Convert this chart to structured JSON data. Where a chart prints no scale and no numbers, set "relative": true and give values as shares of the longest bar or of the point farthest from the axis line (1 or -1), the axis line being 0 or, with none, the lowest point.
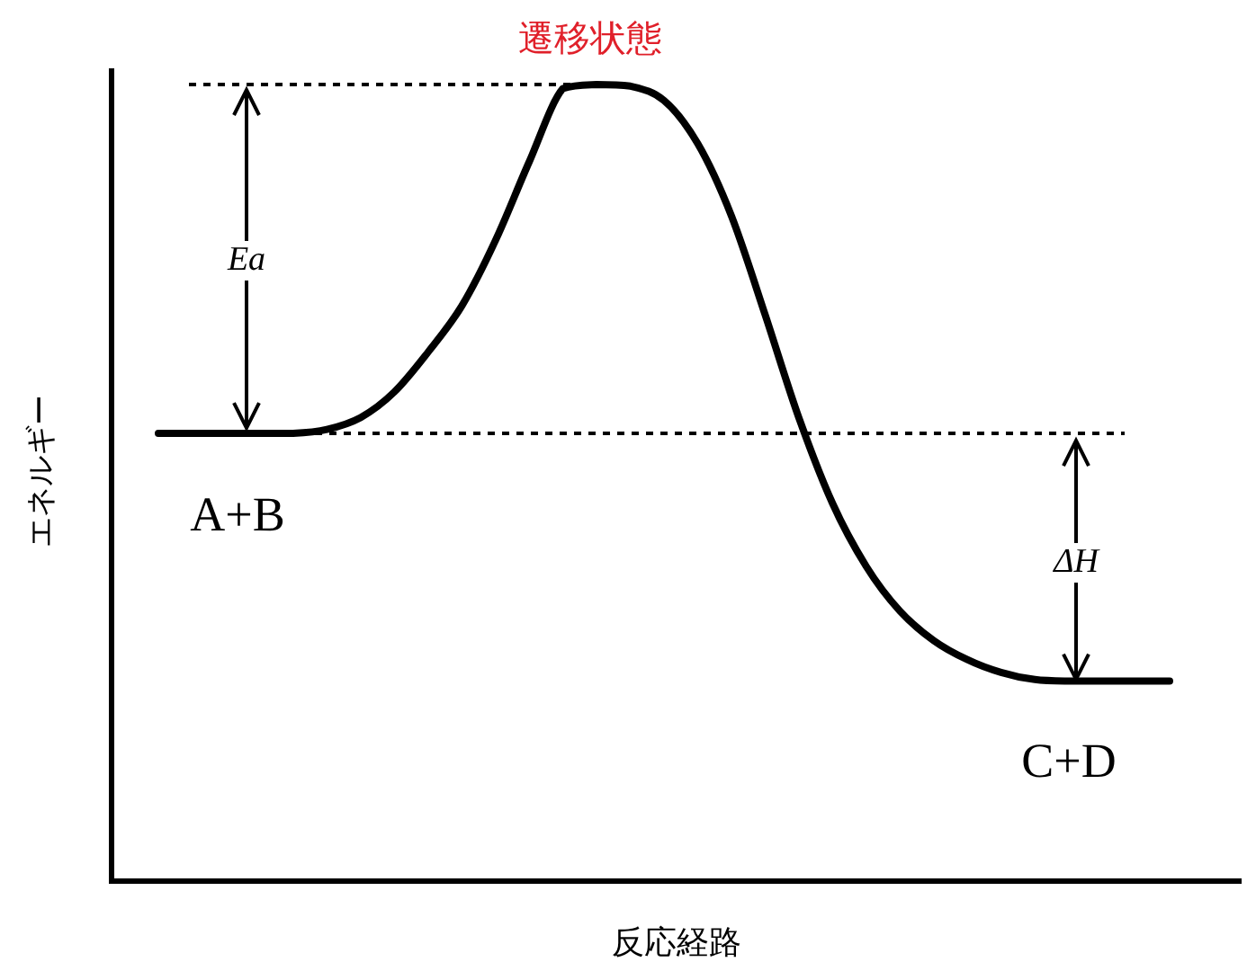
{
  "chart_data": {
    "type": "line",
    "title": "遷移状態",
    "xlabel": "反応経路",
    "ylabel": "エネルギー",
    "relative": true,
    "categories": [
      null,
      null,
      null,
      null,
      null,
      null,
      null,
      null,
      null,
      null,
      null,
      null,
      null,
      null,
      null,
      null,
      null,
      null,
      null,
      null,
      null,
      null,
      null,
      null,
      null,
      null,
      null,
      null,
      null,
      null,
      null
    ],
    "series": [
      {
        "color": "#000000",
        "values": [
          0.562,
          0.562,
          0.562,
          0.562,
          0.562,
          0.567,
          0.582,
          0.614,
          0.664,
          0.722,
          0.804,
          0.903,
          0.995,
          1,
          0.998,
          0.98,
          0.926,
          0.835,
          0.711,
          0.582,
          0.474,
          0.395,
          0.339,
          0.302,
          0.278,
          0.262,
          0.253,
          0.251,
          0.251,
          0.251,
          0.251
        ]
      }
    ],
    "ref_lines": [
      {
        "axis": "y",
        "value": 1,
        "line_style": "dashed"
      },
      {
        "axis": "y",
        "value": 0.562,
        "line_style": "dashed"
      }
    ],
    "annotations": [
      "Ea",
      "ΔH",
      "A+B",
      "C+D"
    ],
    "marker": "none",
    "line_style": "solid"
  }
}
